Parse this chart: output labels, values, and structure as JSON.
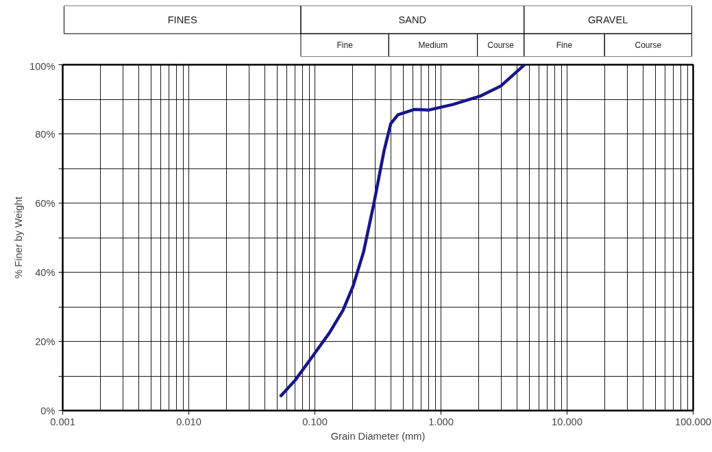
{
  "chart_data": {
    "type": "line",
    "xlabel": "Grain Diameter (mm)",
    "ylabel": "% Finer by Weight",
    "log": "x",
    "xlim": [
      0.001,
      100
    ],
    "ylim": [
      0,
      100
    ],
    "xticks": [
      {
        "value": 0.001,
        "label": "0.001"
      },
      {
        "value": 0.01,
        "label": "0.010"
      },
      {
        "value": 0.1,
        "label": "0.100"
      },
      {
        "value": 1,
        "label": "1.000"
      },
      {
        "value": 10,
        "label": "10.000"
      },
      {
        "value": 100,
        "label": "100.000"
      }
    ],
    "yticks": [
      {
        "value": 0,
        "label": "0%"
      },
      {
        "value": 10,
        "label": null
      },
      {
        "value": 20,
        "label": "20%"
      },
      {
        "value": 30,
        "label": null
      },
      {
        "value": 40,
        "label": "40%"
      },
      {
        "value": 50,
        "label": null
      },
      {
        "value": 60,
        "label": "60%"
      },
      {
        "value": 70,
        "label": null
      },
      {
        "value": 80,
        "label": "80%"
      },
      {
        "value": 90,
        "label": null
      },
      {
        "value": 100,
        "label": "100%"
      }
    ],
    "grid": true,
    "marker": "none",
    "line_style": "solid",
    "annotations": [
      "FINES",
      "SAND",
      "GRAVEL",
      "Fine",
      "Medium",
      "Course",
      "Fine",
      "Course"
    ],
    "series": [
      {
        "color": "#16168a",
        "x": [
          0.053,
          0.0695,
          0.095,
          0.13,
          0.167,
          0.201,
          0.243,
          0.293,
          0.354,
          0.4,
          0.455,
          0.62,
          0.8,
          1.24,
          2.04,
          2.97,
          4.6
        ],
        "values": [
          4,
          8.7,
          15.5,
          22.4,
          29,
          36,
          45.8,
          59.7,
          75.2,
          83,
          85.5,
          87.1,
          86.9,
          88.5,
          90.9,
          93.8,
          100
        ]
      }
    ]
  }
}
